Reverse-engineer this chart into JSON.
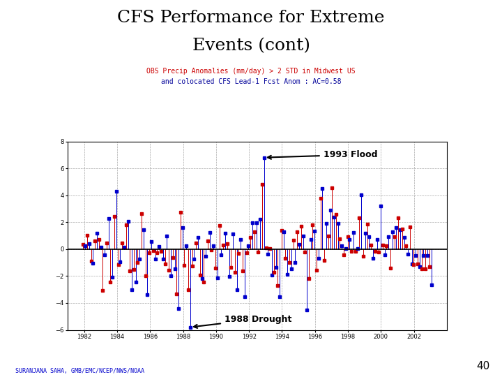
{
  "title_line1": "CFS Performance for Extreme",
  "title_line2": "Events (cont)",
  "subtitle_line1": "OBS Precip Anomalies (mm/day) > 2 STD in Midwest US",
  "subtitle_line2": "and colocated CFS Lead-1 Fcst Anom : AC=0.58",
  "page_number": "40",
  "credit_text": "SURANJANA SAHA, GMB/EMC/NCEP/NWS/NOAA",
  "annotation_flood": "1993 Flood",
  "annotation_drought": "1988 Drought",
  "ylim": [
    -6,
    8
  ],
  "yticks": [
    -6,
    -4,
    -2,
    0,
    2,
    4,
    6,
    8
  ],
  "xlabel_ticks": [
    "1982",
    "1984",
    "1986",
    "1988",
    "1990",
    "1992",
    "1994",
    "1996",
    "1998",
    "2000",
    "2002"
  ],
  "subtitle_color": "#cc0000",
  "subtitle_color2": "#000099",
  "background_color": "#ffffff",
  "red_color": "#cc0000",
  "blue_color": "#0000cc",
  "grid_color": "#aaaaaa",
  "title_fontsize": 18,
  "subtitle_fontsize": 7,
  "tick_fontsize": 6,
  "annot_fontsize": 9,
  "credit_fontsize": 6,
  "page_fontsize": 11
}
